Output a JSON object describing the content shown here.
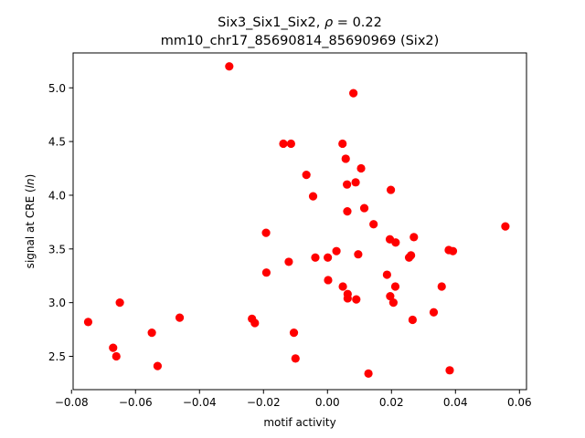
{
  "chart_data": {
    "type": "scatter",
    "title_line1_prefix": "Six3_Six1_Six2, ",
    "title_line1_symbol": "ρ",
    "title_line1_suffix": " = 0.22",
    "title_line2": "mm10_chr17_85690814_85690969 (Six2)",
    "xlabel": "motif activity",
    "ylabel_prefix": "signal at CRE (",
    "ylabel_italic": "ln",
    "ylabel_suffix": ")",
    "xlim": [
      -0.0795,
      0.0622
    ],
    "ylim": [
      2.19,
      5.325
    ],
    "xticks": [
      -0.08,
      -0.06,
      -0.04,
      -0.02,
      0.0,
      0.02,
      0.04,
      0.06
    ],
    "xtick_labels": [
      "−0.08",
      "−0.06",
      "−0.04",
      "−0.02",
      "0.00",
      "0.02",
      "0.04",
      "0.06"
    ],
    "yticks": [
      2.5,
      3.0,
      3.5,
      4.0,
      4.5,
      5.0
    ],
    "ytick_labels": [
      "2.5",
      "3.0",
      "3.5",
      "4.0",
      "4.5",
      "5.0"
    ],
    "grid": false,
    "legend": "none",
    "marker_color": "#ff0000",
    "points": [
      {
        "x": -0.0307,
        "y": 5.2
      },
      {
        "x": 0.0081,
        "y": 4.95
      },
      {
        "x": -0.0138,
        "y": 4.48
      },
      {
        "x": -0.0114,
        "y": 4.48
      },
      {
        "x": 0.0047,
        "y": 4.48
      },
      {
        "x": 0.0057,
        "y": 4.34
      },
      {
        "x": 0.0105,
        "y": 4.25
      },
      {
        "x": -0.0066,
        "y": 4.19
      },
      {
        "x": 0.0088,
        "y": 4.12
      },
      {
        "x": 0.0061,
        "y": 4.1
      },
      {
        "x": 0.0198,
        "y": 4.05
      },
      {
        "x": -0.0045,
        "y": 3.99
      },
      {
        "x": 0.0115,
        "y": 3.88
      },
      {
        "x": 0.0062,
        "y": 3.85
      },
      {
        "x": 0.0144,
        "y": 3.73
      },
      {
        "x": 0.0556,
        "y": 3.71
      },
      {
        "x": -0.0192,
        "y": 3.65
      },
      {
        "x": 0.027,
        "y": 3.61
      },
      {
        "x": 0.0195,
        "y": 3.59
      },
      {
        "x": 0.0213,
        "y": 3.56
      },
      {
        "x": 0.0379,
        "y": 3.49
      },
      {
        "x": 0.0392,
        "y": 3.48
      },
      {
        "x": 0.0028,
        "y": 3.48
      },
      {
        "x": 0.0096,
        "y": 3.45
      },
      {
        "x": 0.0261,
        "y": 3.44
      },
      {
        "x": 0.0255,
        "y": 3.42
      },
      {
        "x": -0.0038,
        "y": 3.42
      },
      {
        "x": 0.0001,
        "y": 3.42
      },
      {
        "x": -0.0121,
        "y": 3.38
      },
      {
        "x": -0.0191,
        "y": 3.28
      },
      {
        "x": 0.0186,
        "y": 3.26
      },
      {
        "x": 0.0002,
        "y": 3.21
      },
      {
        "x": 0.0048,
        "y": 3.15
      },
      {
        "x": 0.0212,
        "y": 3.15
      },
      {
        "x": 0.0357,
        "y": 3.15
      },
      {
        "x": 0.0063,
        "y": 3.08
      },
      {
        "x": 0.0196,
        "y": 3.06
      },
      {
        "x": 0.0063,
        "y": 3.04
      },
      {
        "x": 0.009,
        "y": 3.03
      },
      {
        "x": 0.0206,
        "y": 3.0
      },
      {
        "x": -0.0649,
        "y": 3.0
      },
      {
        "x": 0.0332,
        "y": 2.91
      },
      {
        "x": -0.0462,
        "y": 2.86
      },
      {
        "x": -0.0236,
        "y": 2.85
      },
      {
        "x": 0.0266,
        "y": 2.84
      },
      {
        "x": -0.0748,
        "y": 2.82
      },
      {
        "x": -0.0227,
        "y": 2.81
      },
      {
        "x": -0.0549,
        "y": 2.72
      },
      {
        "x": -0.0105,
        "y": 2.72
      },
      {
        "x": -0.067,
        "y": 2.58
      },
      {
        "x": -0.066,
        "y": 2.5
      },
      {
        "x": -0.01,
        "y": 2.48
      },
      {
        "x": -0.0531,
        "y": 2.41
      },
      {
        "x": 0.0382,
        "y": 2.37
      },
      {
        "x": 0.0128,
        "y": 2.34
      }
    ]
  }
}
